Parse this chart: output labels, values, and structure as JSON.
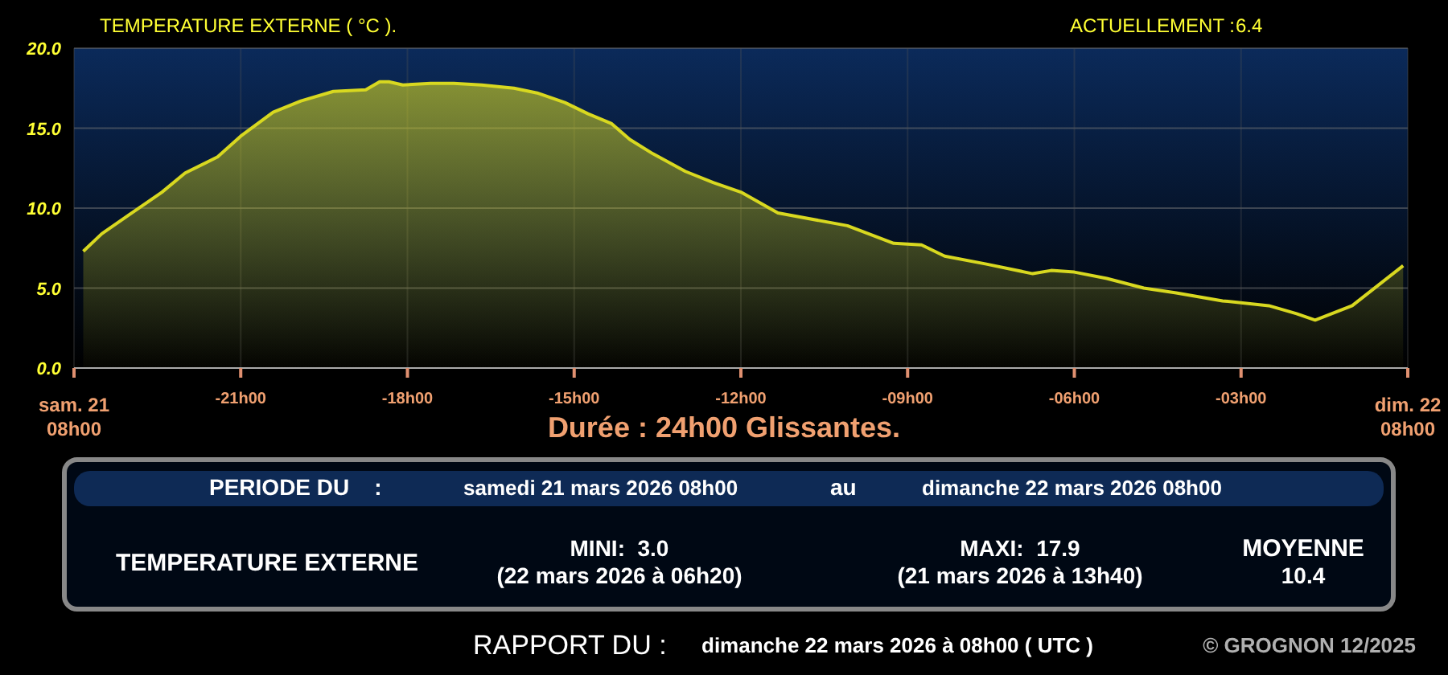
{
  "chart_data": {
    "type": "area",
    "title": "TEMPERATURE EXTERNE ( °C ).",
    "subtitle": "Durée : 24h00 Glissantes.",
    "x": [
      "2026-03-21T08:10",
      "2026-03-21T08:30",
      "2026-03-21T09:00",
      "2026-03-21T09:35",
      "2026-03-21T10:00",
      "2026-03-21T10:35",
      "2026-03-21T11:00",
      "2026-03-21T11:35",
      "2026-03-21T12:05",
      "2026-03-21T12:40",
      "2026-03-21T13:15",
      "2026-03-21T13:30",
      "2026-03-21T13:40",
      "2026-03-21T13:55",
      "2026-03-21T14:25",
      "2026-03-21T14:50",
      "2026-03-21T15:20",
      "2026-03-21T15:55",
      "2026-03-21T16:20",
      "2026-03-21T16:50",
      "2026-03-21T17:15",
      "2026-03-21T17:40",
      "2026-03-21T18:00",
      "2026-03-21T18:25",
      "2026-03-21T19:00",
      "2026-03-21T19:30",
      "2026-03-21T20:00",
      "2026-03-21T20:40",
      "2026-03-21T21:55",
      "2026-03-21T22:45",
      "2026-03-21T23:15",
      "2026-03-21T23:40",
      "2026-03-22T00:25",
      "2026-03-22T01:15",
      "2026-03-22T01:35",
      "2026-03-22T02:00",
      "2026-03-22T02:35",
      "2026-03-22T03:15",
      "2026-03-22T03:50",
      "2026-03-22T04:40",
      "2026-03-22T05:30",
      "2026-03-22T06:00",
      "2026-03-22T06:20",
      "2026-03-22T07:00",
      "2026-03-22T07:55"
    ],
    "series": [
      {
        "color": "#d8d820",
        "values": [
          7.3,
          8.4,
          9.6,
          11.0,
          12.2,
          13.2,
          14.5,
          16.0,
          16.7,
          17.3,
          17.4,
          17.9,
          17.9,
          17.7,
          17.8,
          17.8,
          17.7,
          17.5,
          17.2,
          16.6,
          15.9,
          15.3,
          14.3,
          13.4,
          12.3,
          11.6,
          11.0,
          9.7,
          8.9,
          7.8,
          7.7,
          7.0,
          6.5,
          5.9,
          6.1,
          6.0,
          5.6,
          5.0,
          4.7,
          4.2,
          3.9,
          3.4,
          3.0,
          3.9,
          6.4
        ]
      }
    ],
    "xlim": [
      "2026-03-21T08:00",
      "2026-03-22T08:00"
    ],
    "xticks": [
      {
        "value": "2026-03-21T08:00",
        "label": "sam. 21\n08h00"
      },
      {
        "value": "2026-03-21T11:00",
        "label": "-21h00"
      },
      {
        "value": "2026-03-21T14:00",
        "label": "-18h00"
      },
      {
        "value": "2026-03-21T17:00",
        "label": "-15h00"
      },
      {
        "value": "2026-03-21T20:00",
        "label": "-12h00"
      },
      {
        "value": "2026-03-21T23:00",
        "label": "-09h00"
      },
      {
        "value": "2026-03-22T02:00",
        "label": "-06h00"
      },
      {
        "value": "2026-03-22T05:00",
        "label": "-03h00"
      },
      {
        "value": "2026-03-22T08:00",
        "label": "dim. 22\n08h00"
      }
    ],
    "ylim": [
      0,
      20
    ],
    "yticks": [
      {
        "value": 0,
        "label": "0.0"
      },
      {
        "value": 5,
        "label": "5.0"
      },
      {
        "value": 10,
        "label": "10.0"
      },
      {
        "value": 15,
        "label": "15.0"
      },
      {
        "value": 20,
        "label": "20.0"
      }
    ],
    "grid": true,
    "annotations": [
      "ACTUELLEMENT :",
      "6.4",
      "PERIODE DU    :",
      "samedi 21 mars 2026 08h00",
      "au",
      "dimanche 22 mars 2026 08h00",
      "TEMPERATURE EXTERNE",
      "MINI:  3.0",
      "(22 mars 2026 à 06h20)",
      "MAXI:  17.9",
      "(21 mars 2026 à 13h40)",
      "MOYENNE",
      "10.4",
      "RAPPORT DU :",
      "dimanche 22 mars 2026 à 08h00 ( UTC )",
      "© GROGNON 12/2025"
    ]
  }
}
